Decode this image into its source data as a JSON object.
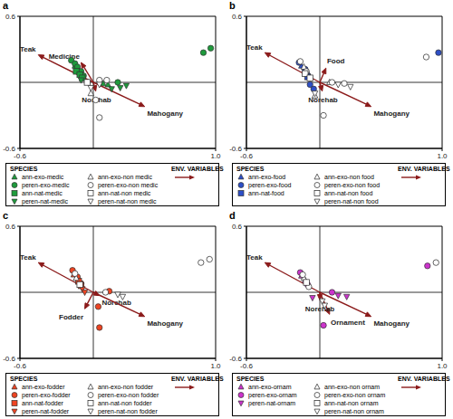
{
  "chart_data": [
    {
      "type": "scatter",
      "title": "a",
      "xlim": [
        -0.6,
        1
      ],
      "ylim": [
        -0.6,
        0.6
      ],
      "xticks": [
        -0.6,
        {
          "value": 1,
          "label": "1.0"
        }
      ],
      "yticks": [
        -0.6,
        0.6
      ],
      "reference_lines": {
        "x": 0,
        "y": 0
      },
      "legend": "bottom",
      "species_legend_title": "SPECIES",
      "vector_legend_title": "ENV. VARIABLES",
      "series": [
        {
          "name": "ann-exo-medic",
          "color": "#1e9b3c",
          "marker": "triangle",
          "x": [
            -0.15,
            -0.12,
            0.08,
            0.12
          ],
          "y": [
            0.15,
            0.12,
            -0.01,
            -0.02
          ]
        },
        {
          "name": "peren-exo-medic",
          "color": "#1e9b3c",
          "marker": "circle",
          "x": [
            -0.18,
            -0.15,
            -0.13,
            -0.1,
            -0.08,
            0.2,
            0.9,
            0.96
          ],
          "y": [
            0.2,
            0.17,
            0.14,
            0.1,
            0.06,
            0.0,
            0.27,
            0.31
          ]
        },
        {
          "name": "ann-nat-medic",
          "color": "#1e9b3c",
          "marker": "square",
          "x": [
            -0.14,
            -0.11,
            -0.09
          ],
          "y": [
            0.1,
            0.07,
            0.04
          ]
        },
        {
          "name": "peren-nat-medic",
          "color": "#1e9b3c",
          "marker": "triangle-down",
          "x": [
            -0.1,
            0.15,
            0.22,
            0.27
          ],
          "y": [
            0.02,
            -0.06,
            -0.05,
            -0.03
          ]
        },
        {
          "name": "ann-exo-non medic",
          "color": "#ffffff",
          "marker": "triangle",
          "x": [
            -0.02
          ],
          "y": [
            -0.1
          ]
        },
        {
          "name": "peren-exo-non medic",
          "color": "#ffffff",
          "marker": "circle",
          "x": [
            0.05,
            0.11,
            0.02,
            0.05
          ],
          "y": [
            0.02,
            0.02,
            -0.16,
            -0.32
          ]
        },
        {
          "name": "ann-nat-non medic",
          "color": "#ffffff",
          "marker": "square",
          "x": [
            -0.05
          ],
          "y": [
            0.0
          ]
        },
        {
          "name": "peren-nat-non medic",
          "color": "#ffffff",
          "marker": "triangle-down",
          "x": [
            -0.02,
            0.05
          ],
          "y": [
            -0.05,
            -0.02
          ]
        }
      ],
      "vectors": [
        {
          "name": "Teak",
          "color": "#8b1a1a",
          "x": -0.45,
          "y": 0.25
        },
        {
          "name": "Medicine",
          "color": "#8b1a1a",
          "x": -0.1,
          "y": 0.18
        },
        {
          "name": "Norehab",
          "color": "#8b1a1a",
          "x": 0.02,
          "y": -0.08
        },
        {
          "name": "Mahogany",
          "color": "#8b1a1a",
          "x": 0.42,
          "y": -0.22
        }
      ]
    },
    {
      "type": "scatter",
      "title": "b",
      "xlim": [
        -0.6,
        1
      ],
      "ylim": [
        -0.6,
        0.6
      ],
      "xticks": [
        -0.6,
        {
          "value": 1,
          "label": "1.0"
        }
      ],
      "yticks": [
        -0.6,
        0.6
      ],
      "reference_lines": {
        "x": 0,
        "y": 0
      },
      "legend": "bottom",
      "species_legend_title": "SPECIES",
      "vector_legend_title": "ENV. VARIABLES",
      "series": [
        {
          "name": "ann-exo-food",
          "color": "#2d4fc7",
          "marker": "triangle",
          "x": [
            -0.15,
            -0.1
          ],
          "y": [
            0.15,
            0.09
          ]
        },
        {
          "name": "peren-exo-food",
          "color": "#2d4fc7",
          "marker": "circle",
          "x": [
            -0.17,
            -0.12,
            -0.08,
            -0.05,
            0.97
          ],
          "y": [
            0.18,
            0.12,
            -0.02,
            -0.06,
            0.27
          ]
        },
        {
          "name": "ann-nat-food",
          "color": "#2d4fc7",
          "marker": "square",
          "x": [
            -0.1
          ],
          "y": [
            0.05
          ]
        },
        {
          "name": "ann-exo-non food",
          "color": "#ffffff",
          "marker": "triangle",
          "x": [
            -0.13,
            -0.04,
            0.08
          ],
          "y": [
            0.14,
            -0.12,
            0.0
          ]
        },
        {
          "name": "peren-exo-non food",
          "color": "#ffffff",
          "marker": "circle",
          "x": [
            -0.16,
            -0.11,
            0.1,
            0.2,
            0.03,
            0.87
          ],
          "y": [
            0.19,
            0.1,
            0.0,
            -0.01,
            -0.3,
            0.23
          ]
        },
        {
          "name": "ann-nat-non food",
          "color": "#ffffff",
          "marker": "square",
          "x": [
            -0.12,
            -0.08
          ],
          "y": [
            0.08,
            0.04
          ]
        },
        {
          "name": "peren-nat-non food",
          "color": "#ffffff",
          "marker": "triangle-down",
          "x": [
            0.15,
            0.25,
            -0.04
          ],
          "y": [
            -0.02,
            -0.04,
            -0.1
          ]
        }
      ],
      "vectors": [
        {
          "name": "Teak",
          "color": "#8b1a1a",
          "x": -0.45,
          "y": 0.27
        },
        {
          "name": "Food",
          "color": "#8b1a1a",
          "x": 0.05,
          "y": 0.13
        },
        {
          "name": "Norehab",
          "color": "#8b1a1a",
          "x": 0.02,
          "y": -0.08
        },
        {
          "name": "Mahogany",
          "color": "#8b1a1a",
          "x": 0.42,
          "y": -0.22
        }
      ]
    },
    {
      "type": "scatter",
      "title": "c",
      "xlim": [
        -0.6,
        1
      ],
      "ylim": [
        -0.6,
        0.6
      ],
      "xticks": [
        -0.6,
        {
          "value": 1,
          "label": "1.0"
        }
      ],
      "yticks": [
        -0.6,
        0.6
      ],
      "reference_lines": {
        "x": 0,
        "y": 0
      },
      "legend": "bottom",
      "species_legend_title": "SPECIES",
      "vector_legend_title": "ENV. VARIABLES",
      "series": [
        {
          "name": "ann-exo-fodder",
          "color": "#ee4422",
          "marker": "triangle",
          "x": [
            -0.16,
            -0.12
          ],
          "y": [
            0.16,
            0.12
          ]
        },
        {
          "name": "peren-exo-fodder",
          "color": "#ee4422",
          "marker": "circle",
          "x": [
            -0.17,
            -0.13,
            -0.1,
            0.13,
            0.04,
            0.05
          ],
          "y": [
            0.2,
            0.14,
            0.08,
            0.01,
            -0.13,
            -0.32
          ]
        },
        {
          "name": "ann-nat-fodder",
          "color": "#ee4422",
          "marker": "square",
          "x": [
            -0.12,
            -0.1
          ],
          "y": [
            0.1,
            0.06
          ]
        },
        {
          "name": "peren-nat-fodder",
          "color": "#ee4422",
          "marker": "triangle-down",
          "x": [
            -0.09,
            -0.07
          ],
          "y": [
            0.03,
            0.0
          ]
        },
        {
          "name": "ann-exo-non fodder",
          "color": "#ffffff",
          "marker": "triangle",
          "x": [
            -0.14
          ],
          "y": [
            0.13
          ]
        },
        {
          "name": "peren-exo-non fodder",
          "color": "#ffffff",
          "marker": "circle",
          "x": [
            -0.15,
            0.1,
            0.88,
            0.95
          ],
          "y": [
            0.17,
            0.0,
            0.27,
            0.3
          ]
        },
        {
          "name": "ann-nat-non fodder",
          "color": "#ffffff",
          "marker": "square",
          "x": [
            -0.11
          ],
          "y": [
            0.07
          ]
        },
        {
          "name": "peren-nat-non fodder",
          "color": "#ffffff",
          "marker": "triangle-down",
          "x": [
            0.2,
            0.24
          ],
          "y": [
            -0.02,
            -0.04
          ]
        }
      ],
      "vectors": [
        {
          "name": "Teak",
          "color": "#8b1a1a",
          "x": -0.45,
          "y": 0.27
        },
        {
          "name": "Fodder",
          "color": "#8b1a1a",
          "x": -0.07,
          "y": -0.15
        },
        {
          "name": "Norehab",
          "color": "#8b1a1a",
          "x": 0.05,
          "y": -0.03
        },
        {
          "name": "Mahogany",
          "color": "#8b1a1a",
          "x": 0.42,
          "y": -0.22
        }
      ]
    },
    {
      "type": "scatter",
      "title": "d",
      "xlim": [
        -0.6,
        1
      ],
      "ylim": [
        -0.6,
        0.6
      ],
      "xticks": [
        -0.6,
        {
          "value": 1,
          "label": "1.0"
        }
      ],
      "yticks": [
        -0.6,
        0.6
      ],
      "reference_lines": {
        "x": 0,
        "y": 0
      },
      "legend": "bottom",
      "species_legend_title": "SPECIES",
      "vector_legend_title": "ENV. VARIABLES",
      "series": [
        {
          "name": "ann-exo-ornam",
          "color": "#cc33cc",
          "marker": "triangle",
          "x": [
            -0.15,
            -0.12
          ],
          "y": [
            0.15,
            0.11
          ]
        },
        {
          "name": "peren-exo-ornam",
          "color": "#cc33cc",
          "marker": "circle",
          "x": [
            -0.16,
            -0.1,
            0.1,
            0.03,
            0.88
          ],
          "y": [
            0.18,
            0.07,
            0.0,
            -0.3,
            0.24
          ]
        },
        {
          "name": "peren-nat-ornam",
          "color": "#cc33cc",
          "marker": "triangle-down",
          "x": [
            0.15,
            0.22,
            -0.06
          ],
          "y": [
            -0.03,
            -0.04,
            -0.05
          ]
        },
        {
          "name": "ann-exo-non ornam",
          "color": "#ffffff",
          "marker": "triangle",
          "x": [
            -0.13
          ],
          "y": [
            0.13
          ]
        },
        {
          "name": "peren-exo-non ornam",
          "color": "#ffffff",
          "marker": "circle",
          "x": [
            -0.14,
            -0.09,
            0.95
          ],
          "y": [
            0.16,
            0.05,
            0.27
          ]
        },
        {
          "name": "ann-nat-non ornam",
          "color": "#ffffff",
          "marker": "square",
          "x": [
            -0.11
          ],
          "y": [
            0.09
          ]
        },
        {
          "name": "peren-nat-non ornam",
          "color": "#ffffff",
          "marker": "triangle-down",
          "x": [
            0.02,
            0.04
          ],
          "y": [
            -0.08,
            -0.12
          ]
        }
      ],
      "vectors": [
        {
          "name": "Teak",
          "color": "#8b1a1a",
          "x": -0.45,
          "y": 0.27
        },
        {
          "name": "Ornament",
          "color": "#8b1a1a",
          "x": 0.08,
          "y": -0.2
        },
        {
          "name": "Norehab",
          "color": "#8b1a1a",
          "x": 0.0,
          "y": -0.07
        },
        {
          "name": "Mahogany",
          "color": "#8b1a1a",
          "x": 0.42,
          "y": -0.22
        }
      ]
    }
  ]
}
